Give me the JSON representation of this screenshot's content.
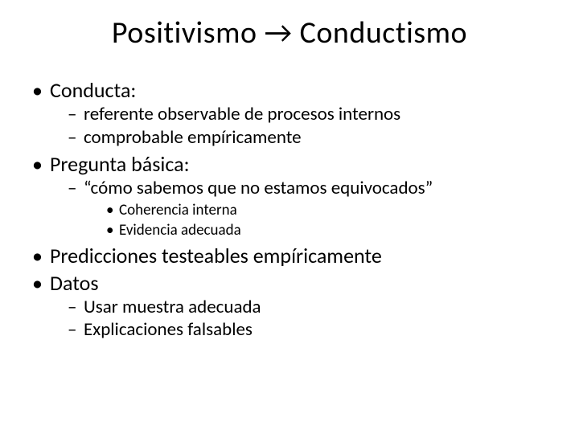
{
  "title": "Positivismo  →  Conductismo",
  "bullets": [
    {
      "text": "Conducta:",
      "children": [
        {
          "text": "referente observable de procesos internos"
        },
        {
          "text": "comprobable empíricamente"
        }
      ]
    },
    {
      "text": "Pregunta básica:",
      "children": [
        {
          "text": "“cómo sabemos que no estamos equivocados”",
          "children": [
            {
              "text": "Coherencia interna"
            },
            {
              "text": "Evidencia adecuada"
            }
          ]
        }
      ]
    },
    {
      "text": "Predicciones testeables empíricamente"
    },
    {
      "text": "Datos",
      "children": [
        {
          "text": "Usar muestra adecuada"
        },
        {
          "text": "Explicaciones falsables"
        }
      ]
    }
  ],
  "styles": {
    "background_color": "#ffffff",
    "text_color": "#000000",
    "font_family": "Calibri",
    "title_fontsize": 38,
    "level1_fontsize": 26,
    "level2_fontsize": 23,
    "level3_fontsize": 19
  }
}
